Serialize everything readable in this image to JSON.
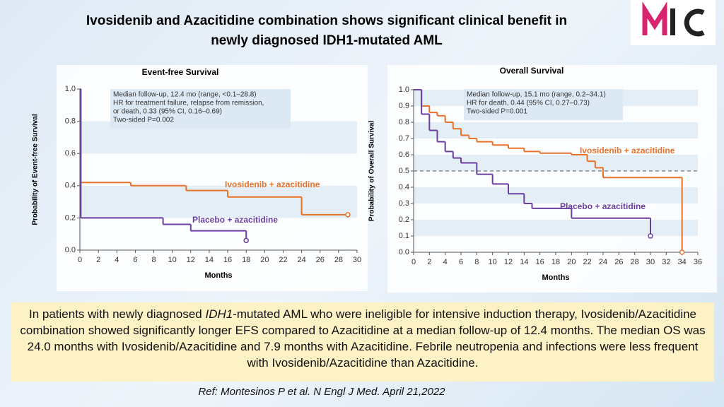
{
  "slide": {
    "title_lines": [
      "Ivosidenib and Azacitidine combination shows significant clinical benefit in",
      "newly diagnosed IDH1-mutated AML"
    ],
    "summary": [
      "In patients with newly diagnosed ",
      "IDH1",
      "-mutated AML who were ineligible for intensive induction therapy, Ivosidenib/Azacitidine combination showed significantly longer EFS compared to Azacitidine at a median follow-up of 12.4 months. The median OS was 24.0 months with Ivosidenib/Azacitidine and 7.9 months with Azacitidine. Febrile neutropenia and infections were less frequent with Ivosidenib/Azacitidine than Azacitidine."
    ],
    "ref": "Ref: Montesinos P et al. N Engl J Med. April 21,2022"
  },
  "chart_data": [
    {
      "type": "step",
      "title": "Event-free Survival",
      "x_label": "Months",
      "y_label": "Probability of Event-free Survival",
      "annotation": [
        "Median follow-up, 12.4 mo (range, <0.1–28.8)",
        "HR for treatment failure, relapse from remission,",
        "or death, 0.33 (95% CI, 0.16–0.69)",
        "Two-sided P=0.002"
      ],
      "xlim": [
        0,
        30
      ],
      "xticks": [
        0,
        2,
        4,
        6,
        8,
        10,
        12,
        14,
        16,
        18,
        20,
        22,
        24,
        26,
        28,
        30
      ],
      "ylim": [
        0,
        1
      ],
      "yticks": [
        {
          "value": 0,
          "label": "0.0"
        },
        0.2,
        0.4,
        0.6,
        0.8,
        {
          "value": 1,
          "label": "1.0"
        }
      ],
      "series": [
        {
          "name": "Ivosidenib + azacitidine",
          "color": "#e8722a",
          "x": [
            0,
            0.1,
            5.5,
            11.5,
            16,
            24,
            29
          ],
          "values": [
            1.0,
            0.42,
            0.4,
            0.37,
            0.33,
            0.22,
            0.22
          ]
        },
        {
          "name": "Placebo + azacitidine",
          "color": "#6a3fa0",
          "x": [
            0,
            0.1,
            9,
            12,
            18
          ],
          "values": [
            1.0,
            0.2,
            0.16,
            0.12,
            0.06
          ]
        }
      ]
    },
    {
      "type": "step",
      "title": "Overall Survival",
      "x_label": "Months",
      "y_label": "Probability of Overall Survival",
      "annotation": [
        "Median follow-up, 15.1 mo (range, 0.2–34.1)",
        "HR for death, 0.44 (95% CI, 0.27–0.73)",
        "Two-sided P=0.001"
      ],
      "xlim": [
        0,
        36
      ],
      "xticks": [
        0,
        2,
        4,
        6,
        8,
        10,
        12,
        14,
        16,
        18,
        20,
        22,
        24,
        26,
        28,
        30,
        32,
        34,
        36
      ],
      "ylim": [
        0,
        1
      ],
      "yticks": [
        {
          "value": 0,
          "label": "0.0"
        },
        0.1,
        0.2,
        0.3,
        0.4,
        0.5,
        0.6,
        0.7,
        0.8,
        0.9,
        {
          "value": 1,
          "label": "1.0"
        }
      ],
      "ref_line": 0.5,
      "series": [
        {
          "name": "Ivosidenib + azacitidine",
          "color": "#e8722a",
          "x": [
            0,
            1,
            2,
            3,
            4,
            5,
            6,
            7,
            8,
            10,
            12,
            14,
            16,
            20,
            22,
            23,
            24,
            34
          ],
          "values": [
            1.0,
            0.9,
            0.86,
            0.84,
            0.8,
            0.76,
            0.72,
            0.7,
            0.68,
            0.66,
            0.64,
            0.62,
            0.61,
            0.6,
            0.56,
            0.52,
            0.46,
            0.0
          ]
        },
        {
          "name": "Placebo + azacitidine",
          "color": "#6a3fa0",
          "x": [
            0,
            1,
            2,
            3,
            4,
            5,
            6,
            8,
            10,
            12,
            14,
            15,
            20,
            30
          ],
          "values": [
            1.0,
            0.85,
            0.75,
            0.68,
            0.62,
            0.58,
            0.55,
            0.48,
            0.42,
            0.36,
            0.3,
            0.27,
            0.21,
            0.1
          ]
        }
      ]
    }
  ]
}
